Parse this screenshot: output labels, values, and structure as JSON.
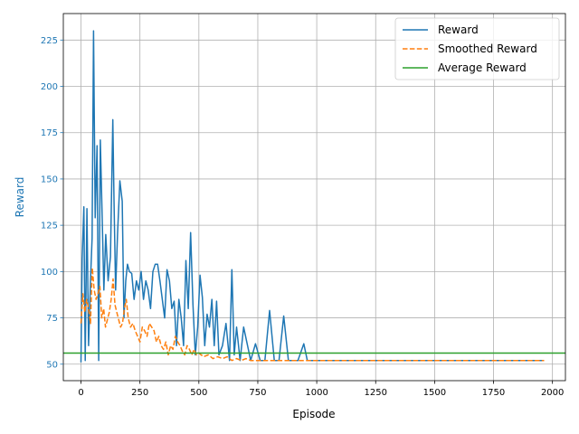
{
  "chart_data": {
    "type": "line",
    "xlabel": "Episode",
    "ylabel": "Reward",
    "xlim": [
      -75,
      2055
    ],
    "ylim": [
      41.1,
      239.3
    ],
    "x_ticks": [
      0,
      250,
      500,
      750,
      1000,
      1250,
      1500,
      1750,
      2000
    ],
    "y_ticks": [
      50,
      75,
      100,
      125,
      150,
      175,
      200,
      225
    ],
    "grid": true,
    "legend_position": "top-right",
    "colors": {
      "reward": "#1f77b4",
      "smoothed": "#ff7f0e",
      "average": "#2ca02c",
      "ylabel": "#1f77b4"
    },
    "series": [
      {
        "name": "Reward",
        "style": "solid",
        "color": "#1f77b4",
        "x": [
          0,
          5,
          12,
          18,
          25,
          32,
          40,
          47,
          53,
          60,
          68,
          75,
          82,
          90,
          97,
          105,
          115,
          125,
          135,
          140,
          147,
          155,
          165,
          175,
          182,
          190,
          197,
          205,
          215,
          225,
          235,
          245,
          255,
          265,
          275,
          285,
          295,
          305,
          315,
          325,
          335,
          345,
          355,
          365,
          375,
          385,
          395,
          405,
          415,
          425,
          435,
          445,
          455,
          465,
          475,
          485,
          495,
          505,
          515,
          525,
          535,
          545,
          555,
          565,
          575,
          585,
          600,
          615,
          630,
          640,
          650,
          660,
          675,
          690,
          705,
          720,
          740,
          760,
          780,
          800,
          820,
          840,
          860,
          880,
          900,
          920,
          945,
          960,
          1000,
          1100,
          1300,
          1500,
          1700,
          1900,
          1965
        ],
        "y": [
          51,
          107,
          135,
          52,
          134,
          60,
          95,
          118,
          230,
          129,
          168,
          52,
          171,
          128,
          90,
          120,
          95,
          108,
          182,
          139,
          90,
          120,
          149,
          138,
          75,
          95,
          104,
          100,
          99,
          85,
          95,
          90,
          100,
          85,
          95,
          90,
          80,
          100,
          104,
          104,
          95,
          85,
          75,
          101,
          95,
          80,
          84,
          60,
          85,
          75,
          60,
          106,
          80,
          121,
          82,
          55,
          70,
          98,
          86,
          60,
          77,
          70,
          85,
          60,
          84,
          55,
          60,
          72,
          52,
          101,
          55,
          70,
          52,
          70,
          61,
          52,
          61,
          52,
          52,
          79,
          52,
          52,
          76,
          52,
          52,
          52,
          61,
          52,
          52,
          52,
          52,
          52,
          52,
          52,
          52
        ]
      },
      {
        "name": "Smoothed Reward",
        "style": "dashed",
        "color": "#ff7f0e",
        "x": [
          0,
          8,
          16,
          24,
          32,
          40,
          48,
          56,
          64,
          72,
          80,
          88,
          96,
          104,
          112,
          120,
          128,
          136,
          144,
          152,
          160,
          168,
          176,
          184,
          192,
          200,
          210,
          220,
          230,
          240,
          250,
          260,
          270,
          280,
          290,
          300,
          310,
          320,
          330,
          340,
          350,
          360,
          370,
          380,
          390,
          400,
          410,
          420,
          430,
          440,
          450,
          460,
          470,
          480,
          490,
          500,
          520,
          540,
          560,
          580,
          600,
          620,
          640,
          660,
          680,
          700,
          720,
          740,
          760,
          800,
          840,
          880,
          920,
          960,
          1000,
          1200,
          1400,
          1600,
          1800,
          1965
        ],
        "y": [
          72,
          88,
          78,
          85,
          80,
          72,
          102,
          90,
          85,
          88,
          92,
          75,
          80,
          70,
          74,
          78,
          85,
          96,
          82,
          78,
          74,
          70,
          72,
          80,
          85,
          75,
          70,
          72,
          68,
          65,
          62,
          70,
          68,
          65,
          72,
          70,
          68,
          62,
          65,
          60,
          58,
          62,
          55,
          60,
          58,
          65,
          62,
          60,
          57,
          55,
          60,
          58,
          55,
          58,
          55,
          56,
          54,
          55,
          53,
          54,
          53,
          54,
          52,
          53,
          52,
          53,
          52,
          52,
          52,
          52,
          52,
          52,
          52,
          52,
          52,
          52,
          52,
          52,
          52,
          52
        ]
      },
      {
        "name": "Average Reward",
        "style": "solid",
        "color": "#2ca02c",
        "x": [
          -75,
          2055
        ],
        "y": [
          56,
          56
        ]
      }
    ]
  }
}
